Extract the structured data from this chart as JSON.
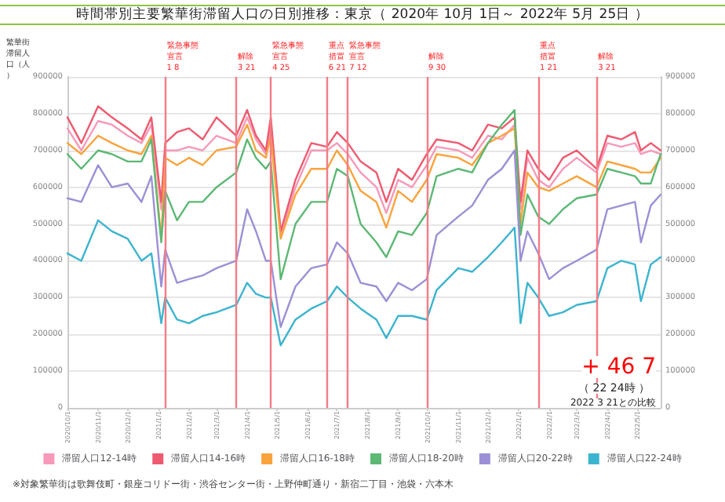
{
  "chart_data": {
    "type": "line",
    "title": "時間帯別主要繁華街滞留人口の日別推移：東京（ 2020年 10月 1日～ 2022年 5月 25日 ）",
    "ylabel": "繁華街滞留人口（人）",
    "x": [
      "2020-10-01",
      "2020-10-15",
      "2020-11-01",
      "2020-11-15",
      "2020-12-01",
      "2020-12-15",
      "2020-12-25",
      "2021-01-04",
      "2021-01-08",
      "2021-01-20",
      "2021-02-01",
      "2021-02-15",
      "2021-03-01",
      "2021-03-21",
      "2021-04-01",
      "2021-04-10",
      "2021-04-20",
      "2021-04-25",
      "2021-05-05",
      "2021-05-20",
      "2021-06-05",
      "2021-06-21",
      "2021-07-01",
      "2021-07-12",
      "2021-07-25",
      "2021-08-10",
      "2021-08-20",
      "2021-09-01",
      "2021-09-15",
      "2021-09-30",
      "2021-10-10",
      "2021-11-01",
      "2021-11-15",
      "2021-12-01",
      "2021-12-15",
      "2021-12-28",
      "2022-01-03",
      "2022-01-10",
      "2022-01-21",
      "2022-02-01",
      "2022-02-15",
      "2022-03-01",
      "2022-03-21",
      "2022-04-01",
      "2022-04-15",
      "2022-04-29",
      "2022-05-05",
      "2022-05-15",
      "2022-05-25"
    ],
    "xlim": [
      "2020-10-01",
      "2022-05-25"
    ],
    "xticks": [
      {
        "value": "2020-10-01",
        "label": "2020/10/1"
      },
      {
        "value": "2020-11-01",
        "label": "2020/11/1"
      },
      {
        "value": "2020-12-01",
        "label": "2020/12/1"
      },
      {
        "value": "2021-01-01",
        "label": "2021/1/1"
      },
      {
        "value": "2021-02-01",
        "label": "2021/2/1"
      },
      {
        "value": "2021-03-01",
        "label": "2021/3/1"
      },
      {
        "value": "2021-04-01",
        "label": "2021/4/1"
      },
      {
        "value": "2021-05-01",
        "label": "2021/5/1"
      },
      {
        "value": "2021-06-01",
        "label": "2021/6/1"
      },
      {
        "value": "2021-07-01",
        "label": "2021/7/1"
      },
      {
        "value": "2021-08-01",
        "label": "2021/8/1"
      },
      {
        "value": "2021-09-01",
        "label": "2021/9/1"
      },
      {
        "value": "2021-10-01",
        "label": "2021/10/1"
      },
      {
        "value": "2021-11-01",
        "label": "2021/11/1"
      },
      {
        "value": "2021-12-01",
        "label": "2021/12/1"
      },
      {
        "value": "2022-01-01",
        "label": "2022/1/1"
      },
      {
        "value": "2022-02-01",
        "label": "2022/2/1"
      },
      {
        "value": "2022-03-01",
        "label": "2022/3/1"
      },
      {
        "value": "2022-04-01",
        "label": "2022/4/1"
      },
      {
        "value": "2022-05-01",
        "label": "2022/5/1"
      }
    ],
    "ylim": [
      0,
      900000
    ],
    "yticks": [
      0,
      100000,
      200000,
      300000,
      400000,
      500000,
      600000,
      700000,
      800000,
      900000
    ],
    "y2lim": [
      0,
      900000
    ],
    "y2ticks": [
      0,
      100000,
      200000,
      300000,
      400000,
      500000,
      600000,
      700000,
      800000,
      900000
    ],
    "series": [
      {
        "name": "滞留人口12-14時",
        "color": "#f799b8",
        "values": [
          760000,
          700000,
          780000,
          770000,
          740000,
          720000,
          770000,
          540000,
          700000,
          700000,
          710000,
          700000,
          740000,
          720000,
          790000,
          730000,
          690000,
          760000,
          470000,
          600000,
          700000,
          700000,
          720000,
          690000,
          640000,
          600000,
          530000,
          620000,
          600000,
          660000,
          710000,
          700000,
          680000,
          740000,
          730000,
          770000,
          540000,
          680000,
          620000,
          600000,
          650000,
          680000,
          640000,
          720000,
          710000,
          720000,
          690000,
          700000,
          690000
        ]
      },
      {
        "name": "滞留人口14-16時",
        "color": "#ee5a6f",
        "values": [
          790000,
          720000,
          820000,
          790000,
          760000,
          730000,
          790000,
          560000,
          720000,
          750000,
          760000,
          730000,
          790000,
          740000,
          810000,
          740000,
          700000,
          790000,
          480000,
          620000,
          720000,
          710000,
          750000,
          720000,
          670000,
          640000,
          560000,
          650000,
          620000,
          690000,
          730000,
          720000,
          700000,
          770000,
          760000,
          790000,
          560000,
          700000,
          650000,
          620000,
          680000,
          700000,
          650000,
          740000,
          730000,
          750000,
          700000,
          720000,
          700000
        ]
      },
      {
        "name": "滞留人口16-18時",
        "color": "#f9a33c",
        "values": [
          720000,
          690000,
          740000,
          720000,
          700000,
          690000,
          740000,
          460000,
          680000,
          660000,
          680000,
          660000,
          700000,
          710000,
          770000,
          700000,
          680000,
          740000,
          460000,
          580000,
          650000,
          650000,
          700000,
          660000,
          590000,
          560000,
          490000,
          590000,
          560000,
          620000,
          690000,
          680000,
          660000,
          720000,
          740000,
          760000,
          500000,
          640000,
          600000,
          590000,
          610000,
          630000,
          600000,
          670000,
          660000,
          650000,
          640000,
          640000,
          680000
        ]
      },
      {
        "name": "滞留人口18-20時",
        "color": "#5cb874",
        "values": [
          690000,
          650000,
          700000,
          690000,
          670000,
          670000,
          730000,
          450000,
          590000,
          510000,
          560000,
          560000,
          600000,
          640000,
          730000,
          680000,
          650000,
          670000,
          350000,
          500000,
          560000,
          560000,
          650000,
          630000,
          500000,
          450000,
          410000,
          480000,
          470000,
          530000,
          630000,
          650000,
          640000,
          720000,
          770000,
          810000,
          470000,
          580000,
          520000,
          500000,
          540000,
          570000,
          580000,
          650000,
          640000,
          630000,
          610000,
          610000,
          690000
        ]
      },
      {
        "name": "滞留人口20-22時",
        "color": "#9d8fd6",
        "values": [
          570000,
          560000,
          660000,
          600000,
          610000,
          560000,
          630000,
          330000,
          430000,
          340000,
          350000,
          360000,
          380000,
          400000,
          540000,
          480000,
          400000,
          400000,
          220000,
          330000,
          380000,
          390000,
          450000,
          420000,
          340000,
          330000,
          290000,
          340000,
          320000,
          350000,
          470000,
          520000,
          550000,
          620000,
          650000,
          700000,
          400000,
          480000,
          420000,
          350000,
          380000,
          400000,
          430000,
          540000,
          550000,
          560000,
          450000,
          550000,
          580000
        ]
      },
      {
        "name": "滞留人口22-24時",
        "color": "#3cb4cf",
        "values": [
          420000,
          400000,
          510000,
          480000,
          460000,
          400000,
          420000,
          230000,
          300000,
          240000,
          230000,
          250000,
          260000,
          280000,
          340000,
          310000,
          300000,
          300000,
          170000,
          240000,
          270000,
          290000,
          330000,
          300000,
          270000,
          240000,
          190000,
          250000,
          250000,
          240000,
          320000,
          380000,
          370000,
          410000,
          450000,
          490000,
          230000,
          340000,
          300000,
          250000,
          260000,
          280000,
          290000,
          380000,
          400000,
          390000,
          290000,
          390000,
          410000
        ]
      }
    ],
    "ref_lines": [
      {
        "axis": "x",
        "value": "2021-01-08",
        "label": "緊急事態宣言\n1 8",
        "color": "#f47c84"
      },
      {
        "axis": "x",
        "value": "2021-03-21",
        "label": "解除\n3 21",
        "color": "#f47c84"
      },
      {
        "axis": "x",
        "value": "2021-04-25",
        "label": "緊急事態宣言\n4 25",
        "color": "#f47c84"
      },
      {
        "axis": "x",
        "value": "2021-06-21",
        "label": "重点措置\n6 21",
        "color": "#f47c84"
      },
      {
        "axis": "x",
        "value": "2021-07-12",
        "label": "緊急事態宣言\n7 12",
        "color": "#f47c84"
      },
      {
        "axis": "x",
        "value": "2021-09-30",
        "label": "解除\n9 30",
        "color": "#f47c84"
      },
      {
        "axis": "x",
        "value": "2022-01-21",
        "label": "重点措置\n1 21",
        "color": "#f47c84"
      },
      {
        "axis": "x",
        "value": "2022-03-21",
        "label": "解除\n3 21",
        "color": "#f47c84"
      }
    ],
    "annotations": [
      "+ 46 7",
      "（ 22 24時 ）",
      "2022 3 21との比較",
      "※対象繁華街は歌舞伎町・銀座コリドー街・渋谷センター街・上野仲町通り・新宿二丁目・池袋・六本木"
    ],
    "grid": "y",
    "legend": "bottom",
    "marker": "none",
    "line_style": "solid"
  }
}
